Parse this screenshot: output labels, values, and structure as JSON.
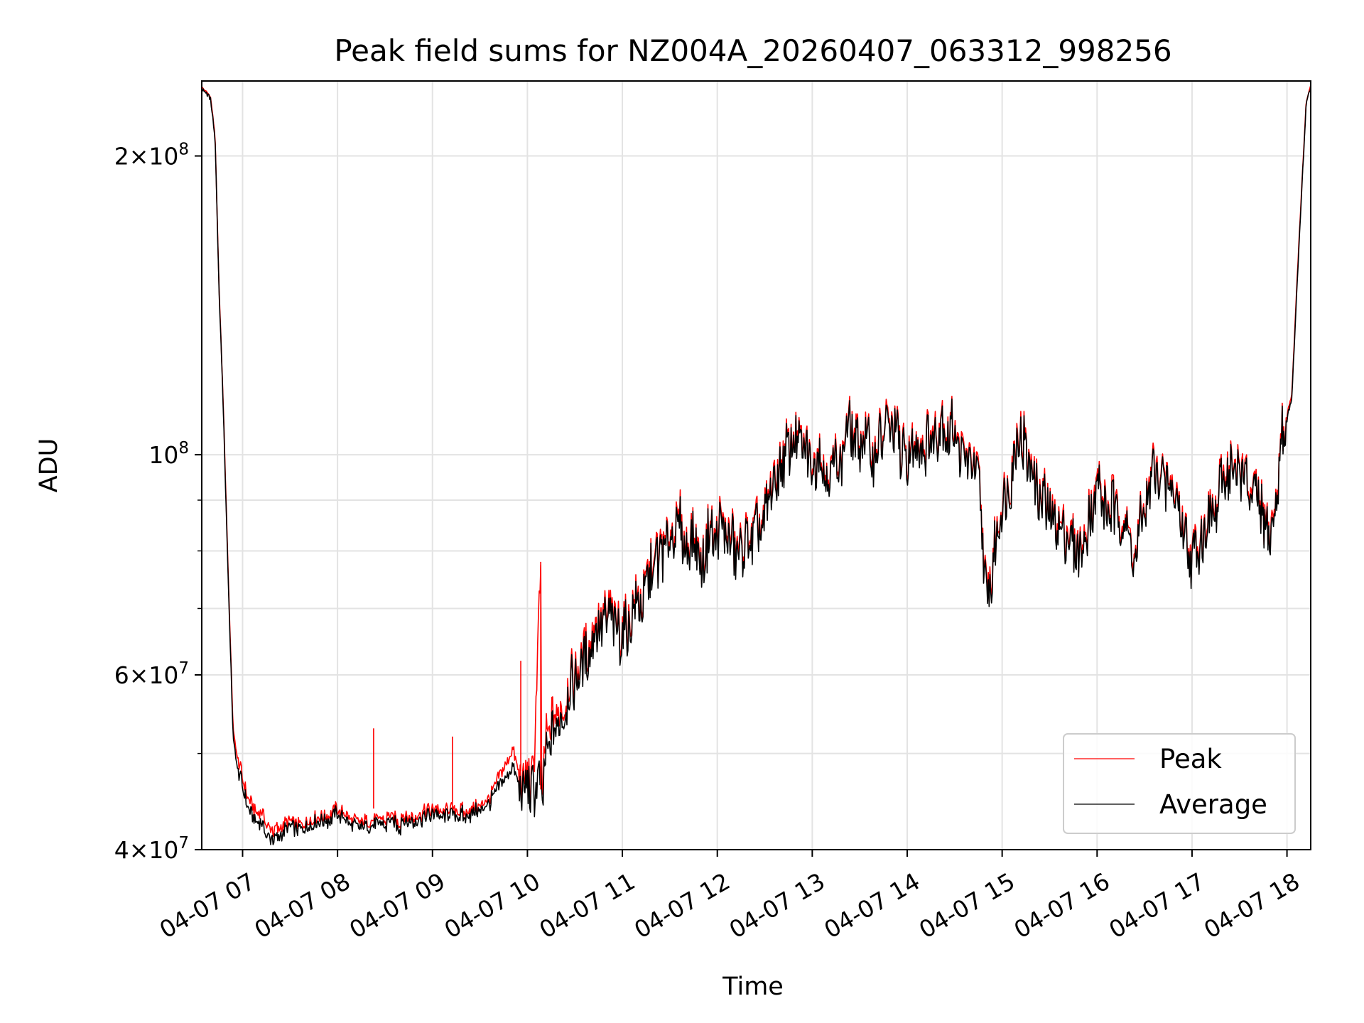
{
  "chart_data": {
    "type": "line",
    "title": "Peak field sums for NZ004A_20260407_063312_998256",
    "xlabel": "Time",
    "ylabel": "ADU",
    "yscale": "log",
    "ylim": [
      40000000,
      238000000
    ],
    "x_range_hours": [
      6.57,
      18.25
    ],
    "grid": true,
    "legend_position": "lower-right",
    "x_ticks": [
      {
        "hour": 7,
        "label": "04-07 07"
      },
      {
        "hour": 8,
        "label": "04-07 08"
      },
      {
        "hour": 9,
        "label": "04-07 09"
      },
      {
        "hour": 10,
        "label": "04-07 10"
      },
      {
        "hour": 11,
        "label": "04-07 11"
      },
      {
        "hour": 12,
        "label": "04-07 12"
      },
      {
        "hour": 13,
        "label": "04-07 13"
      },
      {
        "hour": 14,
        "label": "04-07 14"
      },
      {
        "hour": 15,
        "label": "04-07 15"
      },
      {
        "hour": 16,
        "label": "04-07 16"
      },
      {
        "hour": 17,
        "label": "04-07 17"
      },
      {
        "hour": 18,
        "label": "04-07 18"
      }
    ],
    "y_ticks_major": [
      {
        "value": 40000000,
        "mantissa": "4",
        "exp": "7"
      },
      {
        "value": 60000000,
        "mantissa": "6",
        "exp": "7"
      },
      {
        "value": 100000000,
        "mantissa": "",
        "exp": "8"
      },
      {
        "value": 200000000,
        "mantissa": "2",
        "exp": "8"
      }
    ],
    "y_ticks_minor": [
      50000000,
      70000000,
      80000000,
      90000000
    ],
    "series": [
      {
        "name": "Peak",
        "color": "#ff0000",
        "x_hours": [
          6.57,
          6.66,
          6.71,
          6.75,
          6.8,
          6.85,
          6.9,
          6.95,
          7.05,
          7.15,
          7.3,
          7.5,
          7.8,
          8.0,
          8.2,
          8.5,
          8.8,
          9.0,
          9.3,
          9.6,
          9.85,
          9.93,
          10.0,
          10.06,
          10.14,
          10.15,
          10.2,
          10.4,
          10.6,
          10.8,
          11.0,
          11.2,
          11.45,
          11.6,
          11.8,
          12.0,
          12.2,
          12.4,
          12.6,
          12.8,
          13.0,
          13.2,
          13.4,
          13.6,
          13.8,
          14.0,
          14.2,
          14.4,
          14.55,
          14.75,
          14.85,
          15.0,
          15.2,
          15.4,
          15.6,
          15.8,
          16.0,
          16.2,
          16.4,
          16.6,
          16.8,
          17.0,
          17.2,
          17.4,
          17.55,
          17.7,
          17.85,
          17.95,
          18.05,
          18.12,
          18.2,
          18.25
        ],
        "values": [
          235000000,
          230000000,
          210000000,
          150000000,
          110000000,
          75000000,
          53000000,
          49000000,
          45000000,
          44000000,
          42000000,
          42500000,
          43000000,
          44000000,
          42500000,
          43000000,
          43000000,
          44000000,
          43500000,
          45000000,
          51000000,
          47000000,
          48000000,
          47000000,
          78000000,
          46000000,
          52000000,
          57000000,
          62000000,
          70000000,
          66000000,
          72000000,
          82000000,
          84000000,
          80000000,
          85000000,
          80000000,
          82000000,
          95000000,
          105000000,
          100000000,
          98000000,
          104000000,
          102000000,
          106000000,
          100000000,
          103000000,
          108000000,
          102000000,
          97000000,
          72000000,
          90000000,
          106000000,
          92000000,
          85000000,
          79000000,
          93000000,
          88000000,
          80000000,
          97000000,
          92000000,
          79000000,
          87000000,
          98000000,
          95000000,
          88000000,
          82000000,
          105000000,
          115000000,
          160000000,
          225000000,
          236000000
        ]
      },
      {
        "name": "Average",
        "color": "#000000",
        "x_hours": [
          6.57,
          6.66,
          6.71,
          6.75,
          6.8,
          6.85,
          6.9,
          6.95,
          7.05,
          7.15,
          7.3,
          7.5,
          7.8,
          8.0,
          8.2,
          8.5,
          8.8,
          9.0,
          9.3,
          9.6,
          9.85,
          9.93,
          10.0,
          10.06,
          10.14,
          10.15,
          10.2,
          10.4,
          10.6,
          10.8,
          11.0,
          11.2,
          11.45,
          11.6,
          11.8,
          12.0,
          12.2,
          12.4,
          12.6,
          12.8,
          13.0,
          13.2,
          13.4,
          13.6,
          13.8,
          14.0,
          14.2,
          14.4,
          14.55,
          14.75,
          14.85,
          15.0,
          15.2,
          15.4,
          15.6,
          15.8,
          16.0,
          16.2,
          16.4,
          16.6,
          16.8,
          17.0,
          17.2,
          17.4,
          17.55,
          17.7,
          17.85,
          17.95,
          18.05,
          18.12,
          18.2,
          18.25
        ],
        "values": [
          234000000,
          229000000,
          208000000,
          149000000,
          109000000,
          74000000,
          52000000,
          48000000,
          44000000,
          43000000,
          41000000,
          42000000,
          42500000,
          43500000,
          42000000,
          42500000,
          42500000,
          43500000,
          43000000,
          44500000,
          49000000,
          46000000,
          47000000,
          46000000,
          48000000,
          45000000,
          50000000,
          56000000,
          61000000,
          69000000,
          65000000,
          71000000,
          81000000,
          83000000,
          79000000,
          84000000,
          79000000,
          81000000,
          94000000,
          104000000,
          99000000,
          97000000,
          103000000,
          101000000,
          105000000,
          99000000,
          102000000,
          107000000,
          101000000,
          96000000,
          71000000,
          89000000,
          105000000,
          91000000,
          84000000,
          78000000,
          92000000,
          87000000,
          79000000,
          96000000,
          91000000,
          78000000,
          86000000,
          97000000,
          94000000,
          87000000,
          81000000,
          104000000,
          114000000,
          158000000,
          224000000,
          235000000
        ]
      }
    ]
  }
}
